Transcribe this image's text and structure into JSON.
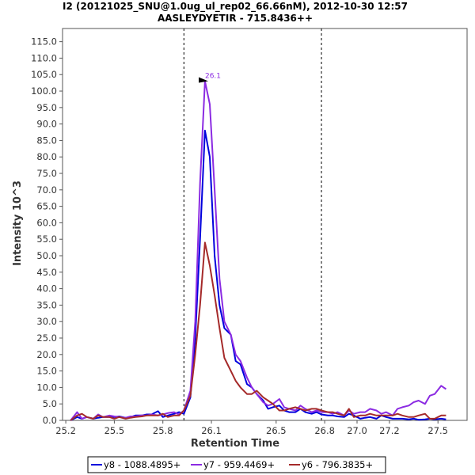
{
  "chart_data": {
    "type": "line",
    "title_line1": "I2 (20121025_SNU@1.0ug_ul_rep02_66.66nM), 2012-10-30 12:57",
    "title_line2": "AASLEYDYETIR - 715.8436++",
    "xlabel": "Retention Time",
    "ylabel": "Intensity 10^3",
    "xlim": [
      25.18,
      27.68
    ],
    "ylim": [
      0,
      119
    ],
    "xticks": [
      "25.2",
      "25.5",
      "25.8",
      "26.1",
      "26.5",
      "26.8",
      "27.0",
      "27.2",
      "27.5"
    ],
    "xtick_values": [
      25.2,
      25.5,
      25.8,
      26.1,
      26.5,
      26.8,
      27.0,
      27.2,
      27.5
    ],
    "yticks": [
      "0.0",
      "5.0",
      "10.0",
      "15.0",
      "20.0",
      "25.0",
      "30.0",
      "35.0",
      "40.0",
      "45.0",
      "50.0",
      "55.0",
      "60.0",
      "65.0",
      "70.0",
      "75.0",
      "80.0",
      "85.0",
      "90.0",
      "95.0",
      "100.0",
      "105.0",
      "110.0",
      "115.0"
    ],
    "ytick_values": [
      0,
      5,
      10,
      15,
      20,
      25,
      30,
      35,
      40,
      45,
      50,
      55,
      60,
      65,
      70,
      75,
      80,
      85,
      90,
      95,
      100,
      105,
      110,
      115
    ],
    "boundaries": [
      25.93,
      26.78
    ],
    "peak_annotation": {
      "label": "26.1",
      "x": 26.09,
      "y": 103
    },
    "series": [
      {
        "name": "y8 - 1088.4895+",
        "color": "#0000dd",
        "x": [
          25.23,
          25.27,
          25.3,
          25.33,
          25.37,
          25.4,
          25.43,
          25.47,
          25.5,
          25.53,
          25.57,
          25.6,
          25.63,
          25.67,
          25.7,
          25.73,
          25.77,
          25.8,
          25.83,
          25.87,
          25.9,
          25.93,
          25.97,
          26.0,
          26.03,
          26.06,
          26.09,
          26.12,
          26.15,
          26.18,
          26.22,
          26.25,
          26.28,
          26.32,
          26.35,
          26.38,
          26.42,
          26.45,
          26.48,
          26.52,
          26.55,
          26.58,
          26.62,
          26.65,
          26.68,
          26.72,
          26.75,
          26.78,
          26.82,
          26.85,
          26.88,
          26.92,
          26.95,
          26.98,
          27.02,
          27.05,
          27.08,
          27.12,
          27.15,
          27.18,
          27.22,
          27.25,
          27.28,
          27.32,
          27.35,
          27.38,
          27.42,
          27.45,
          27.48,
          27.52,
          27.55
        ],
        "y": [
          0,
          1.0,
          0.5,
          1.0,
          0.5,
          0.8,
          1.0,
          1.0,
          1.0,
          1.2,
          0.8,
          1.0,
          1.5,
          1.5,
          1.8,
          1.8,
          2.8,
          1.0,
          1.5,
          2.0,
          2.5,
          2.0,
          7.0,
          25,
          55,
          88,
          80,
          50,
          35,
          28,
          26,
          18,
          17,
          11,
          10,
          8,
          6,
          3.5,
          4.0,
          4.5,
          3.0,
          2.5,
          2.5,
          3.5,
          2.5,
          2.0,
          2.5,
          1.8,
          1.5,
          1.5,
          1.2,
          1.0,
          2.0,
          1.5,
          0.5,
          0.8,
          1.0,
          0.5,
          1.5,
          1.0,
          0.5,
          0.5,
          0.5,
          0.3,
          0.5,
          0.2,
          0.3,
          0.5,
          0.3,
          0.5,
          0.3
        ]
      },
      {
        "name": "y7 - 959.4469+",
        "color": "#8B2BE2",
        "x": [
          25.23,
          25.27,
          25.3,
          25.33,
          25.37,
          25.4,
          25.43,
          25.47,
          25.5,
          25.53,
          25.57,
          25.6,
          25.63,
          25.67,
          25.7,
          25.73,
          25.77,
          25.8,
          25.83,
          25.87,
          25.9,
          25.93,
          25.97,
          26.0,
          26.03,
          26.06,
          26.09,
          26.12,
          26.15,
          26.18,
          26.22,
          26.25,
          26.28,
          26.32,
          26.35,
          26.38,
          26.42,
          26.45,
          26.48,
          26.52,
          26.55,
          26.58,
          26.62,
          26.65,
          26.68,
          26.72,
          26.75,
          26.78,
          26.82,
          26.85,
          26.88,
          26.92,
          26.95,
          26.98,
          27.02,
          27.05,
          27.08,
          27.12,
          27.15,
          27.18,
          27.22,
          27.25,
          27.28,
          27.32,
          27.35,
          27.38,
          27.42,
          27.45,
          27.48,
          27.52,
          27.55
        ],
        "y": [
          0,
          2.5,
          0.5,
          1.0,
          0.5,
          1.8,
          1.0,
          1.5,
          1.2,
          1.0,
          0.8,
          1.2,
          1.2,
          1.5,
          1.5,
          1.8,
          1.5,
          1.8,
          2.2,
          2.5,
          1.8,
          3.0,
          9.0,
          30,
          72,
          103,
          96,
          70,
          43,
          30,
          26,
          20,
          18,
          13,
          10,
          8,
          5.5,
          4.5,
          5.0,
          6.5,
          4.0,
          3.5,
          3.0,
          4.5,
          3.5,
          2.5,
          3.0,
          2.5,
          2.5,
          2.0,
          2.5,
          1.5,
          3.0,
          2.0,
          2.5,
          2.5,
          3.5,
          3.0,
          2.0,
          2.5,
          1.5,
          3.5,
          4.0,
          4.5,
          5.5,
          6.0,
          5.0,
          7.5,
          8.0,
          10.5,
          9.5
        ]
      },
      {
        "name": "y6 - 796.3835+",
        "color": "#a52a2a",
        "x": [
          25.23,
          25.27,
          25.3,
          25.33,
          25.37,
          25.4,
          25.43,
          25.47,
          25.5,
          25.53,
          25.57,
          25.6,
          25.63,
          25.67,
          25.7,
          25.73,
          25.77,
          25.8,
          25.83,
          25.87,
          25.9,
          25.93,
          25.97,
          26.0,
          26.03,
          26.06,
          26.09,
          26.12,
          26.15,
          26.18,
          26.22,
          26.25,
          26.28,
          26.32,
          26.35,
          26.38,
          26.42,
          26.45,
          26.48,
          26.52,
          26.55,
          26.58,
          26.62,
          26.65,
          26.68,
          26.72,
          26.75,
          26.78,
          26.82,
          26.85,
          26.88,
          26.92,
          26.95,
          26.98,
          27.02,
          27.05,
          27.08,
          27.12,
          27.15,
          27.18,
          27.22,
          27.25,
          27.28,
          27.32,
          27.35,
          27.38,
          27.42,
          27.45,
          27.48,
          27.52,
          27.55
        ],
        "y": [
          0,
          1.5,
          2.0,
          1.0,
          0.5,
          1.5,
          1.0,
          1.0,
          0.5,
          1.0,
          0.5,
          0.8,
          1.0,
          1.2,
          1.5,
          1.5,
          1.5,
          2.0,
          1.0,
          1.5,
          1.5,
          3.0,
          7.5,
          20,
          35,
          54,
          47,
          38,
          28,
          19,
          15,
          12,
          10,
          8,
          8,
          9,
          7,
          6,
          5,
          3,
          3,
          3.5,
          4.0,
          3.5,
          3.0,
          3.5,
          3.5,
          3.0,
          2.5,
          2.5,
          2.0,
          1.5,
          3.5,
          1.0,
          1.5,
          1.5,
          2.0,
          1.5,
          1.5,
          1.5,
          1.5,
          2.0,
          1.5,
          1.0,
          1.0,
          1.5,
          2.0,
          0.5,
          0.5,
          1.5,
          1.5
        ]
      }
    ],
    "legend_position": "bottom-center"
  }
}
